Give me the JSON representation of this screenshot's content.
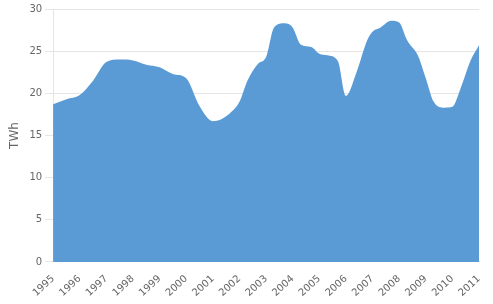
{
  "chart_data": {
    "type": "area",
    "x": [
      1995,
      1995.5,
      1996,
      1996.5,
      1997,
      1997.5,
      1998,
      1998.5,
      1999,
      1999.5,
      2000,
      2000.5,
      2001,
      2001.3,
      2001.7,
      2002,
      2002.3,
      2002.7,
      2003,
      2003.3,
      2003.7,
      2004,
      2004.3,
      2004.7,
      2005,
      2005.3,
      2005.7,
      2006,
      2006.4,
      2006.8,
      2007,
      2007.3,
      2007.7,
      2008,
      2008.3,
      2008.7,
      2009,
      2009.3,
      2009.7,
      2010,
      2010.3,
      2010.7,
      2011
    ],
    "values": [
      18.7,
      19.3,
      19.8,
      21.5,
      23.7,
      24.0,
      23.9,
      23.4,
      23.1,
      22.3,
      21.8,
      18.5,
      16.7,
      16.9,
      17.8,
      19.0,
      21.5,
      23.5,
      24.3,
      27.8,
      28.3,
      27.8,
      25.8,
      25.5,
      24.7,
      24.5,
      23.8,
      19.7,
      22.5,
      26.3,
      27.3,
      27.8,
      28.6,
      28.4,
      26.3,
      24.5,
      21.8,
      19.0,
      18.3,
      18.4,
      20.5,
      24.0,
      25.7
    ],
    "color": "#5b9bd5",
    "y_label": "TWh",
    "xlim": [
      1995,
      2011
    ],
    "xticks": [
      1995,
      1996,
      1997,
      1998,
      1999,
      2000,
      2001,
      2002,
      2003,
      2004,
      2005,
      2006,
      2007,
      2008,
      2009,
      2010,
      2011
    ],
    "ylim": [
      0,
      30
    ],
    "yticks": [
      0,
      5,
      10,
      15,
      20,
      25,
      30
    ],
    "grid": true
  }
}
